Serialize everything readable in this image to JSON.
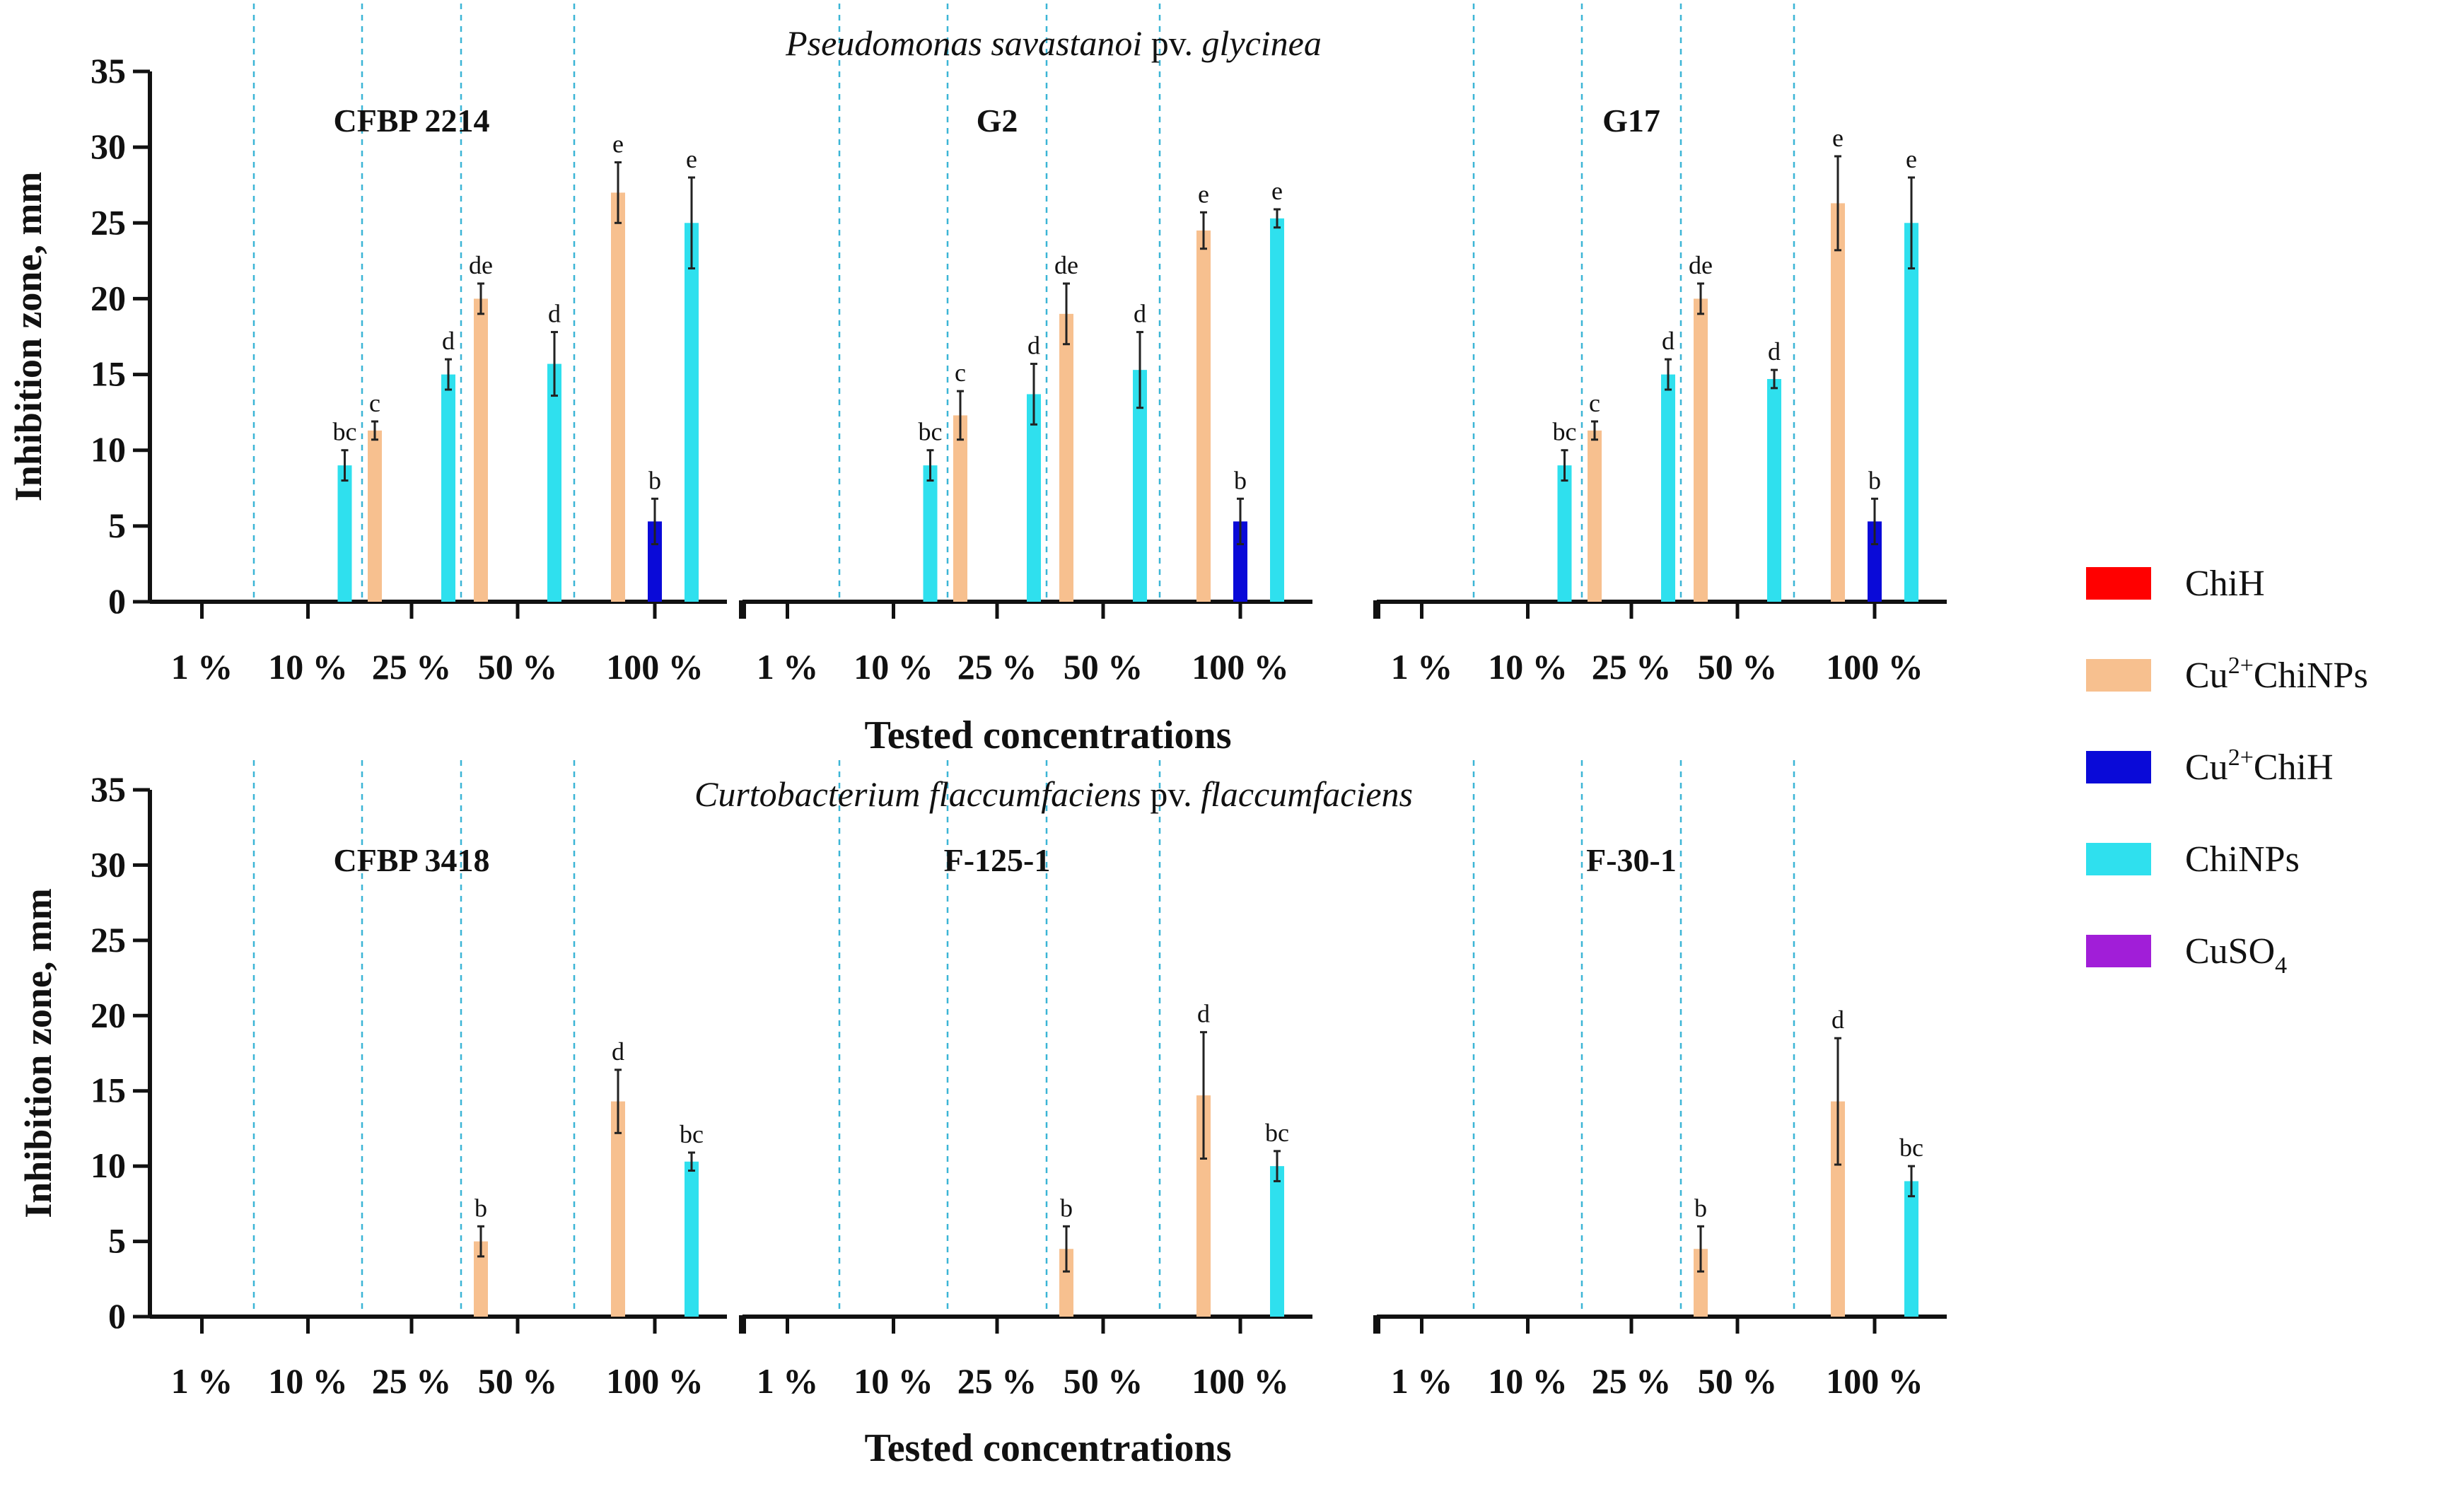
{
  "concentrations": [
    "1 %",
    "10 %",
    "25 %",
    "50 %",
    "100 %"
  ],
  "legend": [
    {
      "base": "ChiH",
      "sup": "",
      "sub": "",
      "rest": "",
      "color": "#ff0000"
    },
    {
      "base": "Cu",
      "sup": "2+",
      "sub": "",
      "rest": "ChiNPs",
      "color": "#f7c08f"
    },
    {
      "base": "Cu",
      "sup": "2+",
      "sub": "",
      "rest": "ChiH",
      "color": "#0a0ad8"
    },
    {
      "base": "ChiNPs",
      "sup": "",
      "sub": "",
      "rest": "",
      "color": "#2fe0ee"
    },
    {
      "base": "CuSO",
      "sup": "",
      "sub": "4",
      "rest": "",
      "color": "#a11ed8"
    }
  ],
  "chart_data": [
    {
      "type": "bar",
      "title_parts": [
        {
          "text": "Pseudomonas savastanoi",
          "italic": true
        },
        {
          "text": " pv. ",
          "italic": false
        },
        {
          "text": "glycinea",
          "italic": true
        }
      ],
      "ylabel": "Inhibition zone, mm",
      "xlabel": "Tested concentrations",
      "ylim": [
        0,
        35
      ],
      "yticks": [
        "0",
        "5",
        "10",
        "15",
        "20",
        "25",
        "30",
        "35"
      ],
      "strains": [
        {
          "name": "CFBP 2214",
          "bars": [
            {
              "conc": 1,
              "series": "ChiNPs",
              "value": 9.0,
              "err": 1.0,
              "label": "bc"
            },
            {
              "conc": 2,
              "series": "Cu2+ChiNPs",
              "value": 11.3,
              "err": 0.6,
              "label": "c"
            },
            {
              "conc": 2,
              "series": "ChiNPs",
              "value": 15.0,
              "err": 1.0,
              "label": "d"
            },
            {
              "conc": 3,
              "series": "Cu2+ChiNPs",
              "value": 20.0,
              "err": 1.0,
              "label": "de"
            },
            {
              "conc": 3,
              "series": "ChiNPs",
              "value": 15.7,
              "err": 2.1,
              "label": "d"
            },
            {
              "conc": 4,
              "series": "Cu2+ChiNPs",
              "value": 27.0,
              "err": 2.0,
              "label": "e"
            },
            {
              "conc": 4,
              "series": "Cu2+ChiH",
              "value": 5.3,
              "err": 1.5,
              "label": "b"
            },
            {
              "conc": 4,
              "series": "ChiNPs",
              "value": 25.0,
              "err": 3.0,
              "label": "e"
            }
          ]
        },
        {
          "name": "G2",
          "bars": [
            {
              "conc": 1,
              "series": "ChiNPs",
              "value": 9.0,
              "err": 1.0,
              "label": "bc"
            },
            {
              "conc": 2,
              "series": "Cu2+ChiNPs",
              "value": 12.3,
              "err": 1.6,
              "label": "c"
            },
            {
              "conc": 2,
              "series": "ChiNPs",
              "value": 13.7,
              "err": 2.0,
              "label": "d"
            },
            {
              "conc": 3,
              "series": "Cu2+ChiNPs",
              "value": 19.0,
              "err": 2.0,
              "label": "de"
            },
            {
              "conc": 3,
              "series": "ChiNPs",
              "value": 15.3,
              "err": 2.5,
              "label": "d"
            },
            {
              "conc": 4,
              "series": "Cu2+ChiNPs",
              "value": 24.5,
              "err": 1.2,
              "label": "e"
            },
            {
              "conc": 4,
              "series": "Cu2+ChiH",
              "value": 5.3,
              "err": 1.5,
              "label": "b"
            },
            {
              "conc": 4,
              "series": "ChiNPs",
              "value": 25.3,
              "err": 0.6,
              "label": "e"
            }
          ]
        },
        {
          "name": "G17",
          "bars": [
            {
              "conc": 1,
              "series": "ChiNPs",
              "value": 9.0,
              "err": 1.0,
              "label": "bc"
            },
            {
              "conc": 2,
              "series": "Cu2+ChiNPs",
              "value": 11.3,
              "err": 0.6,
              "label": "c"
            },
            {
              "conc": 2,
              "series": "ChiNPs",
              "value": 15.0,
              "err": 1.0,
              "label": "d"
            },
            {
              "conc": 3,
              "series": "Cu2+ChiNPs",
              "value": 20.0,
              "err": 1.0,
              "label": "de"
            },
            {
              "conc": 3,
              "series": "ChiNPs",
              "value": 14.7,
              "err": 0.6,
              "label": "d"
            },
            {
              "conc": 4,
              "series": "Cu2+ChiNPs",
              "value": 26.3,
              "err": 3.1,
              "label": "e"
            },
            {
              "conc": 4,
              "series": "Cu2+ChiH",
              "value": 5.3,
              "err": 1.5,
              "label": "b"
            },
            {
              "conc": 4,
              "series": "ChiNPs",
              "value": 25.0,
              "err": 3.0,
              "label": "e"
            }
          ]
        }
      ]
    },
    {
      "type": "bar",
      "title_parts": [
        {
          "text": "Curtobacterium flaccumfaciens",
          "italic": true
        },
        {
          "text": " pv. ",
          "italic": false
        },
        {
          "text": "flaccumfaciens",
          "italic": true
        }
      ],
      "ylabel": "Inhibition zone, mm",
      "xlabel": "Tested concentrations",
      "ylim": [
        0,
        35
      ],
      "yticks": [
        "0",
        "5",
        "10",
        "15",
        "20",
        "25",
        "30",
        "35"
      ],
      "strains": [
        {
          "name": "CFBP 3418",
          "bars": [
            {
              "conc": 3,
              "series": "Cu2+ChiNPs",
              "value": 5.0,
              "err": 1.0,
              "label": "b"
            },
            {
              "conc": 4,
              "series": "Cu2+ChiNPs",
              "value": 14.3,
              "err": 2.1,
              "label": "d"
            },
            {
              "conc": 4,
              "series": "ChiNPs",
              "value": 10.3,
              "err": 0.6,
              "label": "bc"
            }
          ]
        },
        {
          "name": "F-125-1",
          "bars": [
            {
              "conc": 3,
              "series": "Cu2+ChiNPs",
              "value": 4.5,
              "err": 1.5,
              "label": "b"
            },
            {
              "conc": 4,
              "series": "Cu2+ChiNPs",
              "value": 14.7,
              "err": 4.2,
              "label": "d"
            },
            {
              "conc": 4,
              "series": "ChiNPs",
              "value": 10.0,
              "err": 1.0,
              "label": "bc"
            }
          ]
        },
        {
          "name": "F-30-1",
          "bars": [
            {
              "conc": 3,
              "series": "Cu2+ChiNPs",
              "value": 4.5,
              "err": 1.5,
              "label": "b"
            },
            {
              "conc": 4,
              "series": "Cu2+ChiNPs",
              "value": 14.3,
              "err": 4.2,
              "label": "d"
            },
            {
              "conc": 4,
              "series": "ChiNPs",
              "value": 9.0,
              "err": 1.0,
              "label": "bc"
            }
          ]
        }
      ]
    }
  ]
}
